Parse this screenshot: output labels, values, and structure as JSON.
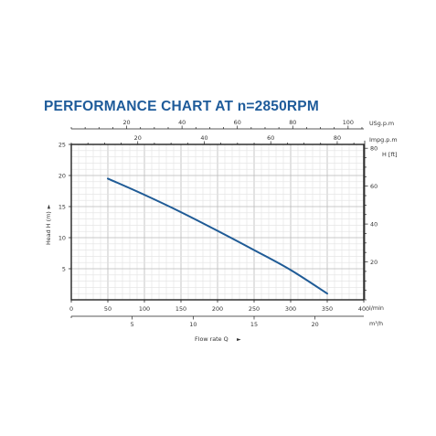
{
  "chart_data": {
    "type": "line",
    "title": "PERFORMANCE CHART AT n=2850RPM",
    "ylabel": "Head H (m)",
    "xlabel": "Flow rate Q",
    "x_unit": "l/min",
    "xlim": [
      0,
      400
    ],
    "x_ticks": [
      "0",
      "50",
      "100",
      "150",
      "200",
      "250",
      "300",
      "350",
      "400"
    ],
    "ylim": [
      0,
      25
    ],
    "y_ticks": [
      "5",
      "10",
      "15",
      "20",
      "25"
    ],
    "grid": true,
    "series": [
      {
        "color": "#1f5b96",
        "x": [
          50,
          100,
          150,
          200,
          250,
          300,
          350
        ],
        "y": [
          19.5,
          16.9,
          14.1,
          11.1,
          8.0,
          4.8,
          1.0
        ]
      }
    ],
    "secondary_axes": {
      "usgpm": {
        "unit": "USg.p.m",
        "ticks": [
          "20",
          "40",
          "60",
          "80",
          "100"
        ],
        "values": [
          20,
          40,
          60,
          80,
          100
        ],
        "per_lmin": 0.264172
      },
      "impgpm": {
        "unit": "Impg.p.m",
        "ticks": [
          "20",
          "40",
          "60",
          "80"
        ],
        "values": [
          20,
          40,
          60,
          80
        ],
        "per_lmin": 0.219969
      },
      "m3h": {
        "unit": "m³/h",
        "ticks": [
          "5",
          "10",
          "15",
          "20"
        ],
        "values": [
          5,
          10,
          15,
          20
        ],
        "per_lmin": 0.06
      },
      "feet": {
        "unit": "H [ft]",
        "ticks": [
          "20",
          "40",
          "60",
          "80"
        ],
        "values": [
          20,
          40,
          60,
          80
        ],
        "per_m": 3.28084
      }
    },
    "arrow_glyph": "►"
  }
}
